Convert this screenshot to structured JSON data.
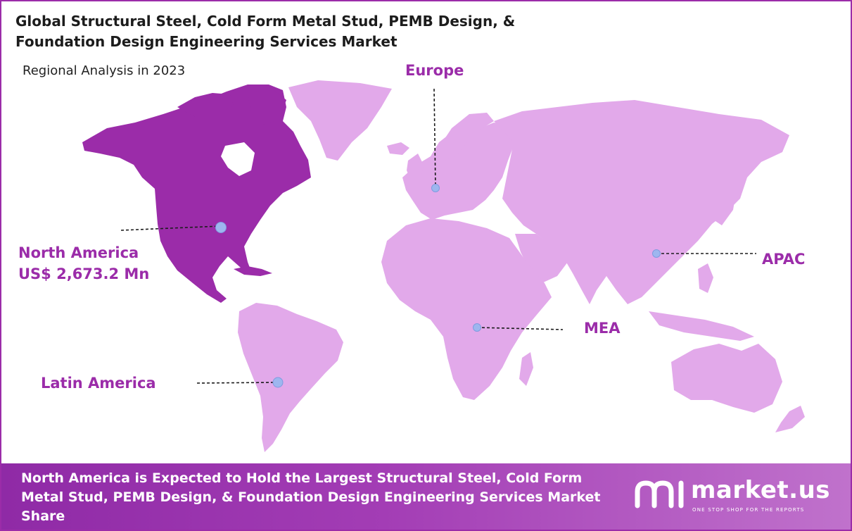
{
  "header": {
    "title": "Global Structural Steel, Cold Form Metal Stud, PEMB Design, & Foundation Design Engineering Services Market",
    "subtitle": "Regional Analysis in 2023"
  },
  "regions": {
    "north_america": {
      "name": "North America",
      "value": "US$  2,673.2 Mn",
      "highlight": true
    },
    "europe": {
      "name": "Europe"
    },
    "apac": {
      "name": "APAC"
    },
    "mea": {
      "name": "MEA"
    },
    "latin_america": {
      "name": "Latin America"
    }
  },
  "colors": {
    "highlight": "#9b2ca9",
    "land": "#e2a9ea",
    "marker": "#9eb6ef",
    "text_accent": "#9b2ca9"
  },
  "footer": {
    "text": "North America is Expected to Hold the Largest Structural Steel, Cold Form Metal Stud, PEMB Design, & Foundation Design Engineering Services Market Share",
    "brand": "market.us",
    "tagline": "ONE STOP SHOP FOR THE REPORTS"
  }
}
